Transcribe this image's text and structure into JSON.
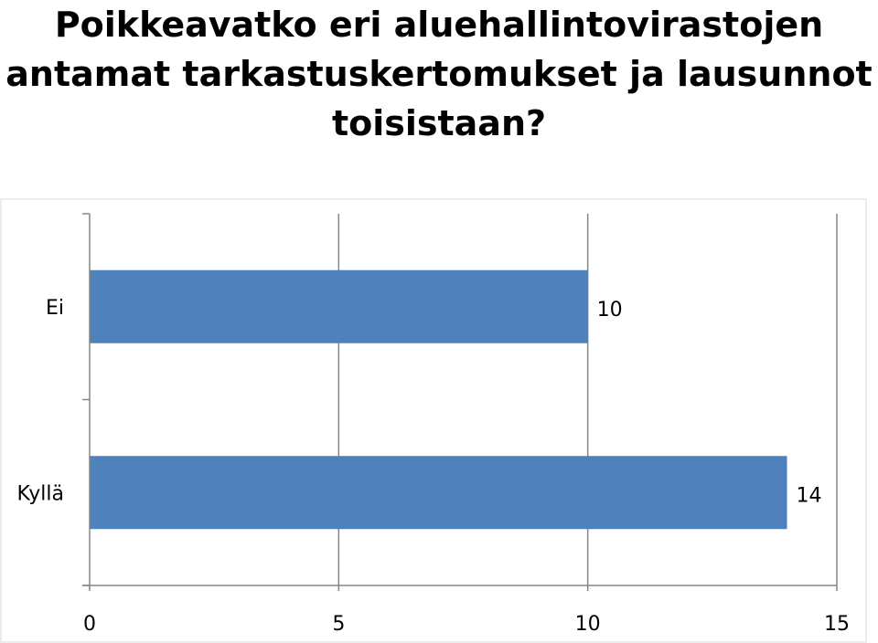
{
  "chart_data": {
    "type": "bar",
    "orientation": "horizontal",
    "title_lines": [
      "Poikkeavatko eri aluehallintovirastojen",
      "antamat tarkastuskertomukset ja lausunnot",
      "toisistaan?"
    ],
    "categories": [
      "Ei",
      "Kyllä"
    ],
    "values": [
      10,
      14
    ],
    "data_labels": [
      "10",
      "14"
    ],
    "xlim": [
      0,
      15
    ],
    "x_ticks": [
      0,
      5,
      10,
      15
    ],
    "x_tick_labels": [
      "0",
      "5",
      "10",
      "15"
    ],
    "grid": true,
    "legend": "none",
    "bar_color": "#4f81bd",
    "gridline_color": "#868686"
  }
}
